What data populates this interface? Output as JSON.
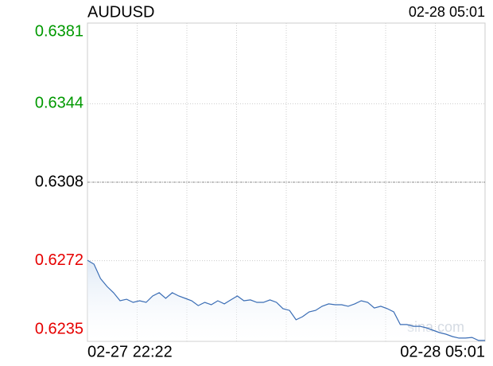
{
  "chart_data": {
    "type": "line",
    "title": "AUDUSD",
    "updated": "02-28 05:01",
    "categories": [
      "02-27 22:22",
      null,
      null,
      null,
      null,
      null,
      null,
      null,
      null,
      null,
      null,
      null,
      null,
      null,
      null,
      null,
      null,
      null,
      null,
      null,
      null,
      null,
      null,
      null,
      null,
      null,
      null,
      null,
      null,
      null,
      null,
      null,
      null,
      null,
      null,
      null,
      null,
      null,
      null,
      null,
      null,
      null,
      null,
      null,
      null,
      null,
      null,
      null,
      null,
      null,
      null,
      null,
      null,
      null,
      null,
      null,
      null,
      null,
      null,
      null,
      null,
      "02-28 05:01"
    ],
    "series": [
      {
        "name": "AUDUSD",
        "color": "#3a6db5",
        "values": [
          0.62722,
          0.62704,
          0.62638,
          0.62602,
          0.62573,
          0.62536,
          0.62543,
          0.62529,
          0.62536,
          0.62529,
          0.62558,
          0.62573,
          0.62547,
          0.62573,
          0.62558,
          0.62547,
          0.62536,
          0.62514,
          0.62529,
          0.62518,
          0.62536,
          0.62522,
          0.6254,
          0.62558,
          0.62536,
          0.6254,
          0.62529,
          0.62529,
          0.6254,
          0.62529,
          0.625,
          0.62492,
          0.62449,
          0.62463,
          0.62485,
          0.62492,
          0.62511,
          0.62522,
          0.62518,
          0.62518,
          0.62511,
          0.62522,
          0.62536,
          0.62529,
          0.62503,
          0.62511,
          0.625,
          0.62485,
          0.62427,
          0.62427,
          0.62419,
          0.62419,
          0.62412,
          0.62401,
          0.6239,
          0.62383,
          0.62372,
          0.62365,
          0.62365,
          0.62368,
          0.62354,
          0.62354
        ]
      }
    ],
    "ylim": [
      0.6235,
      0.6381
    ],
    "yticks": [
      0.6235,
      0.6272,
      0.6308,
      0.6344,
      0.6381
    ],
    "up_color": "#009900",
    "down_color": "#e60000",
    "flat_color": "#000000",
    "watermark": "sina.com",
    "grid": true
  }
}
